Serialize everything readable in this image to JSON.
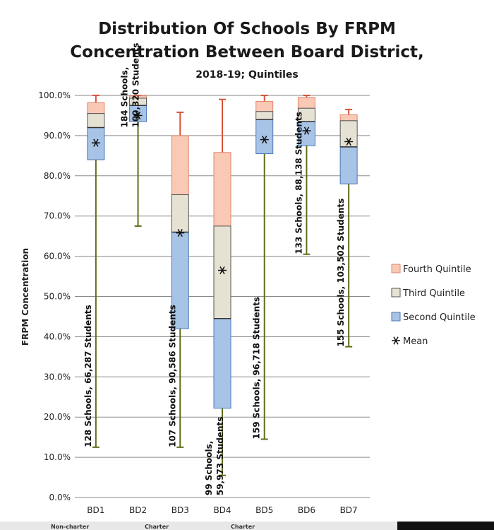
{
  "chart_data": {
    "type": "box",
    "title": [
      "Distribution Of Schools By FRPM",
      "Concentration Between Board District,"
    ],
    "subtitle": "2018-19; Quintiles",
    "ylabel": "FRPM Concentration",
    "ylim": [
      0,
      100
    ],
    "yticks": [
      0,
      10,
      20,
      30,
      40,
      50,
      60,
      70,
      80,
      90,
      100
    ],
    "ytick_labels": [
      "0.0%",
      "10.0%",
      "20.0%",
      "30.0%",
      "40.0%",
      "50.0%",
      "60.0%",
      "70.0%",
      "80.0%",
      "90.0%",
      "100.0%"
    ],
    "grid": true,
    "legend": {
      "placement": "right",
      "items": [
        {
          "key": "fourth",
          "label": "Fourth Quintile",
          "color": "#f9c9b6"
        },
        {
          "key": "third",
          "label": "Third Quintile",
          "color": "#e6e2d3"
        },
        {
          "key": "second",
          "label": "Second Quintile",
          "color": "#a7c3e6"
        },
        {
          "key": "mean",
          "label": "Mean",
          "symbol": "asterisk"
        }
      ]
    },
    "categories": [
      "BD1",
      "BD2",
      "BD3",
      "BD4",
      "BD5",
      "BD6",
      "BD7"
    ],
    "boxes": [
      {
        "category": "BD1",
        "min": 12.5,
        "q1": 84,
        "median": 92,
        "q3": 95.5,
        "p80": 98.2,
        "max": 100,
        "mean": 88.2,
        "label": [
          "128 Schools,  66,287 Students"
        ]
      },
      {
        "category": "BD2",
        "min": 67.5,
        "q1": 93.5,
        "median": 97.5,
        "q3": 99.3,
        "p80": 99.9,
        "max": 100,
        "mean": 95,
        "label": [
          "184 Schools,",
          "100,320 Students"
        ]
      },
      {
        "category": "BD3",
        "min": 12.5,
        "q1": 42,
        "median": 66,
        "q3": 75.3,
        "p80": 90,
        "max": 95.8,
        "mean": 65.8,
        "label": [
          "107 Schools, 90,586 Students"
        ]
      },
      {
        "category": "BD4",
        "min": 5.5,
        "q1": 22.2,
        "median": 44.5,
        "q3": 67.5,
        "p80": 85.8,
        "max": 99,
        "mean": 56.5,
        "label": [
          "99 Schools,",
          "59,973 Students"
        ]
      },
      {
        "category": "BD5",
        "min": 14.5,
        "q1": 85.5,
        "median": 94,
        "q3": 96,
        "p80": 98.5,
        "max": 100,
        "mean": 89,
        "label": [
          "159 Schools, 96,718 Students"
        ]
      },
      {
        "category": "BD6",
        "min": 60.5,
        "q1": 87.5,
        "median": 93.5,
        "q3": 96.8,
        "p80": 99.5,
        "max": 100,
        "mean": 91.2,
        "label": [
          "133 Schools, 88,138 Students"
        ]
      },
      {
        "category": "BD7",
        "min": 37.5,
        "q1": 78,
        "median": 87.2,
        "q3": 93.7,
        "p80": 95.2,
        "max": 96.5,
        "mean": 88.5,
        "label": [
          "155 Schools,  103,502 Students"
        ]
      }
    ],
    "colors": {
      "fourth": "#f9c9b6",
      "fourth_edge": "#e0866a",
      "third": "#e6e2d3",
      "third_edge": "#555555",
      "second": "#a7c3e6",
      "second_edge": "#4a78b8",
      "whisker_low": "#5f6e1c",
      "whisker_high": "#d9533a",
      "grid": "#8a8a8a"
    }
  },
  "footer": {
    "items": [
      "Non-charter",
      "Charter",
      "Charter"
    ]
  }
}
